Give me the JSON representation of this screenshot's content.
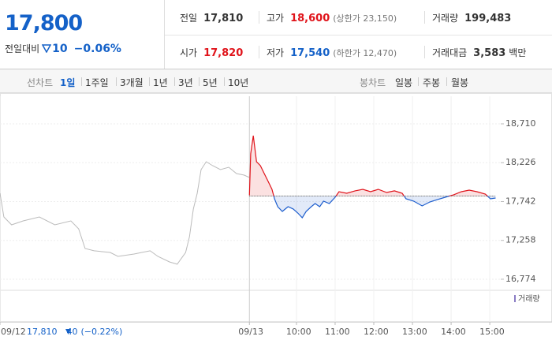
{
  "header": {
    "price": "17,800",
    "change_label": "전일대비",
    "change": "10",
    "change_rate": "−0.06%"
  },
  "quote": {
    "cells": [
      {
        "label": "전일",
        "value": "17,810"
      },
      {
        "label": "고가",
        "value": "18,600",
        "note": "(상한가 23,150)"
      },
      {
        "label": "거래량",
        "value": "199,483"
      },
      {
        "label": "시가",
        "value": "17,820"
      },
      {
        "label": "저가",
        "value": "17,540",
        "note": "(하한가 12,470)"
      },
      {
        "label": "거래대금",
        "value": "3,583",
        "unit": "백만"
      }
    ]
  },
  "nav": {
    "line_label": "선차트",
    "line_periods": [
      "1일",
      "1주일",
      "3개월",
      "1년",
      "3년",
      "5년",
      "10년"
    ],
    "candle_label": "봉차트",
    "candle_periods": [
      "일봉",
      "주봉",
      "월봉"
    ]
  },
  "prev_day": {
    "close": "17,810",
    "change": "40",
    "rate": "(−0.22%)"
  },
  "chart_data": {
    "type": "line",
    "volume_label": "거래량",
    "ylim": [
      16636,
      19054
    ],
    "yticks": [
      {
        "value": 18710,
        "label": "18,710"
      },
      {
        "value": 18226,
        "label": "18,226"
      },
      {
        "value": 17742,
        "label": "17,742"
      },
      {
        "value": 17258,
        "label": "17,258"
      },
      {
        "value": 16774,
        "label": "16,774"
      }
    ],
    "xlim": [
      -400,
      377
    ],
    "xticks": [
      {
        "value": -400,
        "label": "09/12"
      },
      {
        "value": -13,
        "label": "09/13"
      },
      {
        "value": 60,
        "label": "10:00"
      },
      {
        "value": 120,
        "label": "11:00"
      },
      {
        "value": 180,
        "label": "12:00"
      },
      {
        "value": 240,
        "label": "13:00"
      },
      {
        "value": 300,
        "label": "14:00"
      },
      {
        "value": 360,
        "label": "15:00"
      }
    ],
    "baseline": 17810,
    "series": [
      {
        "color": "#bbbbbb",
        "x": [
          -400,
          -394,
          -382,
          -364,
          -339,
          -315,
          -290,
          -278,
          -268,
          -254,
          -229,
          -217,
          -192,
          -167,
          -155,
          -137,
          -125,
          -112,
          -106,
          -100,
          -94,
          -88,
          -80,
          -70,
          -58,
          -45,
          -33,
          -21,
          -13
        ],
        "values": [
          17845,
          17550,
          17452,
          17501,
          17550,
          17452,
          17501,
          17403,
          17157,
          17128,
          17108,
          17059,
          17088,
          17128,
          17059,
          16990,
          16961,
          17108,
          17305,
          17649,
          17845,
          18140,
          18238,
          18189,
          18140,
          18169,
          18091,
          18071,
          18042
        ]
      },
      {
        "color": "#e0141b",
        "below_color": "#1f5fce",
        "x": [
          -13,
          -11,
          -7,
          -2,
          4,
          10,
          16,
          22,
          26,
          31,
          38,
          47,
          55,
          62,
          69,
          75,
          83,
          89,
          96,
          102,
          111,
          120,
          126,
          138,
          151,
          163,
          175,
          187,
          200,
          212,
          224,
          230,
          242,
          255,
          267,
          279,
          291,
          304,
          316,
          328,
          340,
          353,
          361,
          369
        ],
        "values": [
          17820,
          18337,
          18563,
          18238,
          18189,
          18091,
          17993,
          17894,
          17776,
          17678,
          17619,
          17678,
          17649,
          17599,
          17540,
          17619,
          17678,
          17717,
          17678,
          17747,
          17717,
          17796,
          17865,
          17845,
          17875,
          17894,
          17865,
          17894,
          17855,
          17875,
          17845,
          17776,
          17747,
          17688,
          17737,
          17767,
          17796,
          17826,
          17865,
          17884,
          17865,
          17835,
          17776,
          17786
        ]
      }
    ]
  }
}
